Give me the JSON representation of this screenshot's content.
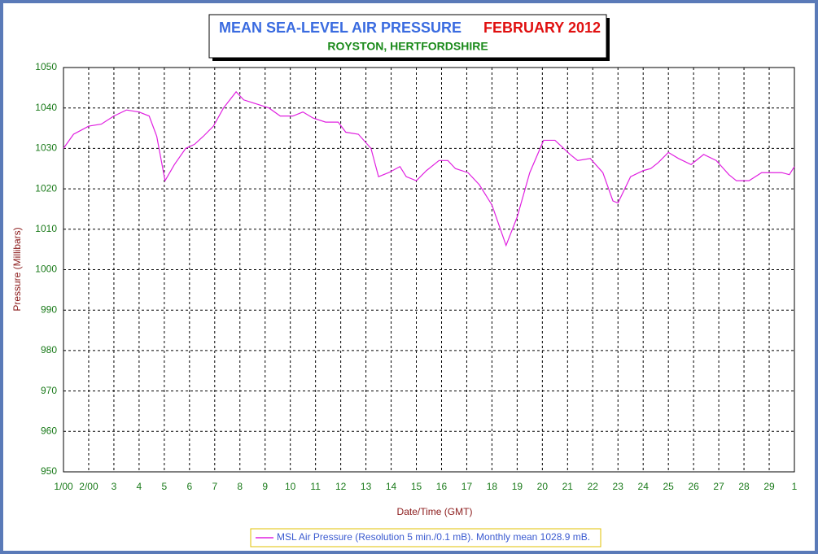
{
  "chart_data": {
    "type": "line",
    "title": "MEAN SEA-LEVEL AIR PRESSURE",
    "title_date": "FEBRUARY 2012",
    "subtitle": "ROYSTON, HERTFORDSHIRE",
    "x_label": "Date/Time (GMT)",
    "y_label": "Pressure (Millibars)",
    "x": [
      0,
      0.4,
      0.7,
      1.0,
      1.5,
      2.0,
      2.5,
      3.0,
      3.4,
      3.7,
      4.03,
      4.4,
      4.85,
      5.2,
      5.55,
      5.95,
      6.35,
      6.85,
      7.15,
      7.65,
      8.15,
      8.6,
      9.1,
      9.5,
      9.9,
      10.4,
      10.9,
      11.2,
      11.7,
      12.2,
      12.5,
      12.9,
      13.35,
      13.6,
      14.0,
      14.4,
      14.9,
      15.25,
      15.55,
      16.05,
      16.5,
      17.0,
      17.56,
      18.0,
      18.5,
      19.05,
      19.5,
      20.1,
      20.4,
      20.9,
      21.4,
      21.8,
      22.0,
      22.5,
      23.0,
      23.3,
      23.6,
      24.0,
      24.4,
      24.9,
      25.4,
      25.9,
      26.4,
      26.7,
      27.2,
      27.7,
      28.5,
      28.8,
      29.0
    ],
    "series": [
      {
        "name": "MSL Air Pressure (Resolution 5 min./0.1 mB). Monthly mean 1028.9 mB.",
        "color": "#e020e0",
        "values": [
          1030,
          1033.5,
          1034.5,
          1035.5,
          1036,
          1038,
          1039.5,
          1039,
          1038,
          1033,
          1022,
          1026,
          1030,
          1031,
          1033,
          1035.5,
          1040,
          1044,
          1042,
          1041,
          1040,
          1038,
          1038,
          1039,
          1037.5,
          1036.5,
          1036.5,
          1034,
          1033.5,
          1030,
          1023,
          1024,
          1025.5,
          1023,
          1022,
          1024.5,
          1027,
          1027,
          1025,
          1024,
          1021,
          1016,
          1006,
          1013,
          1024,
          1032,
          1032,
          1028.5,
          1027,
          1027.5,
          1024,
          1017,
          1016.5,
          1023,
          1024.5,
          1025,
          1026.5,
          1029,
          1027.5,
          1026,
          1028.5,
          1027,
          1023.5,
          1022,
          1022,
          1024,
          1024,
          1023.5,
          1025.5
        ]
      }
    ],
    "xlim": [
      0,
      29
    ],
    "xticks": [
      {
        "value": 0,
        "label": "1/00"
      },
      {
        "value": 1,
        "label": "2/00"
      },
      {
        "value": 2,
        "label": "3"
      },
      {
        "value": 3,
        "label": "4"
      },
      {
        "value": 4,
        "label": "5"
      },
      {
        "value": 5,
        "label": "6"
      },
      {
        "value": 6,
        "label": "7"
      },
      {
        "value": 7,
        "label": "8"
      },
      {
        "value": 8,
        "label": "9"
      },
      {
        "value": 9,
        "label": "10"
      },
      {
        "value": 10,
        "label": "11"
      },
      {
        "value": 11,
        "label": "12"
      },
      {
        "value": 12,
        "label": "13"
      },
      {
        "value": 13,
        "label": "14"
      },
      {
        "value": 14,
        "label": "15"
      },
      {
        "value": 15,
        "label": "16"
      },
      {
        "value": 16,
        "label": "17"
      },
      {
        "value": 17,
        "label": "18"
      },
      {
        "value": 18,
        "label": "19"
      },
      {
        "value": 19,
        "label": "20"
      },
      {
        "value": 20,
        "label": "21"
      },
      {
        "value": 21,
        "label": "22"
      },
      {
        "value": 22,
        "label": "23"
      },
      {
        "value": 23,
        "label": "24"
      },
      {
        "value": 24,
        "label": "25"
      },
      {
        "value": 25,
        "label": "26"
      },
      {
        "value": 26,
        "label": "27"
      },
      {
        "value": 27,
        "label": "28"
      },
      {
        "value": 28,
        "label": "29"
      },
      {
        "value": 29,
        "label": "1"
      }
    ],
    "ylim": [
      950,
      1050
    ],
    "yticks": [
      950,
      960,
      970,
      980,
      990,
      1000,
      1010,
      1020,
      1030,
      1040,
      1050
    ],
    "grid": true
  }
}
